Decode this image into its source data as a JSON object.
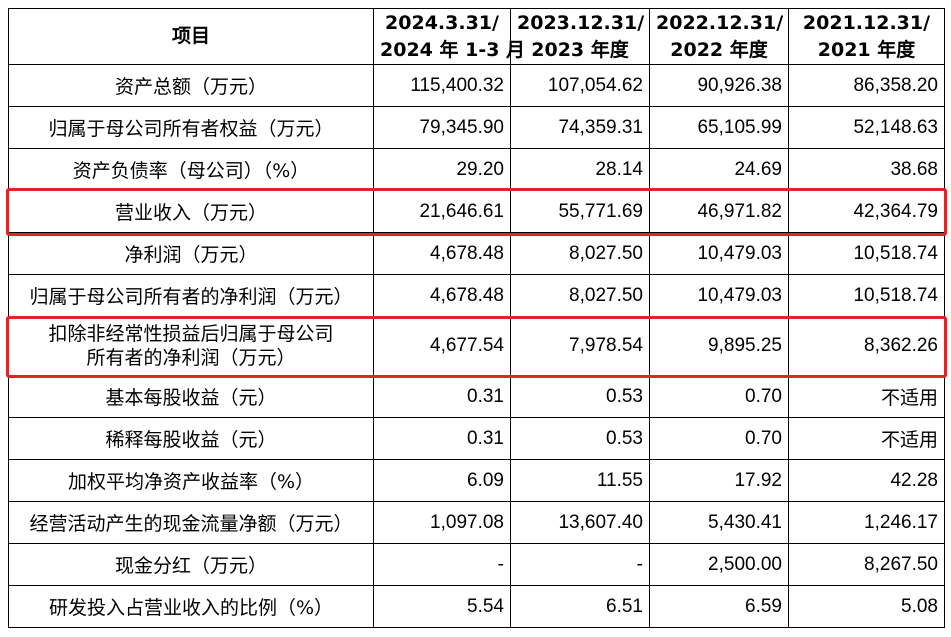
{
  "header": {
    "item": "项目",
    "col1": "2024.3.31/\n2024 年 1-3 月",
    "col2": "2023.12.31/\n2023 年度",
    "col3": "2022.12.31/\n2022 年度",
    "col4": "2021.12.31/\n2021 年度"
  },
  "rows": [
    {
      "label": "资产总额（万元）",
      "v": [
        "115,400.32",
        "107,054.62",
        "90,926.38",
        "86,358.20"
      ]
    },
    {
      "label": "归属于母公司所有者权益（万元）",
      "v": [
        "79,345.90",
        "74,359.31",
        "65,105.99",
        "52,148.63"
      ]
    },
    {
      "label": "资产负债率（母公司）（%）",
      "v": [
        "29.20",
        "28.14",
        "24.69",
        "38.68"
      ]
    },
    {
      "label": "营业收入（万元）",
      "v": [
        "21,646.61",
        "55,771.69",
        "46,971.82",
        "42,364.79"
      ]
    },
    {
      "label": "净利润（万元）",
      "v": [
        "4,678.48",
        "8,027.50",
        "10,479.03",
        "10,518.74"
      ]
    },
    {
      "label": "归属于母公司所有者的净利润（万元）",
      "v": [
        "4,678.48",
        "8,027.50",
        "10,479.03",
        "10,518.74"
      ]
    },
    {
      "label_line1": "扣除非经常性损益后归属于母公司",
      "label_line2": "所有者的净利润（万元）",
      "v": [
        "4,677.54",
        "7,978.54",
        "9,895.25",
        "8,362.26"
      ]
    },
    {
      "label": "基本每股收益（元）",
      "v": [
        "0.31",
        "0.53",
        "0.70",
        "不适用"
      ]
    },
    {
      "label": "稀释每股收益（元）",
      "v": [
        "0.31",
        "0.53",
        "0.70",
        "不适用"
      ]
    },
    {
      "label": "加权平均净资产收益率（%）",
      "v": [
        "6.09",
        "11.55",
        "17.92",
        "42.28"
      ]
    },
    {
      "label": "经营活动产生的现金流量净额（万元）",
      "v": [
        "1,097.08",
        "13,607.40",
        "5,430.41",
        "1,246.17"
      ]
    },
    {
      "label": "现金分红（万元）",
      "v": [
        "-",
        "-",
        "2,500.00",
        "8,267.50"
      ]
    },
    {
      "label": "研发投入占营业收入的比例（%）",
      "v": [
        "5.54",
        "6.51",
        "6.59",
        "5.08"
      ]
    }
  ],
  "highlight_color": "#e32424"
}
